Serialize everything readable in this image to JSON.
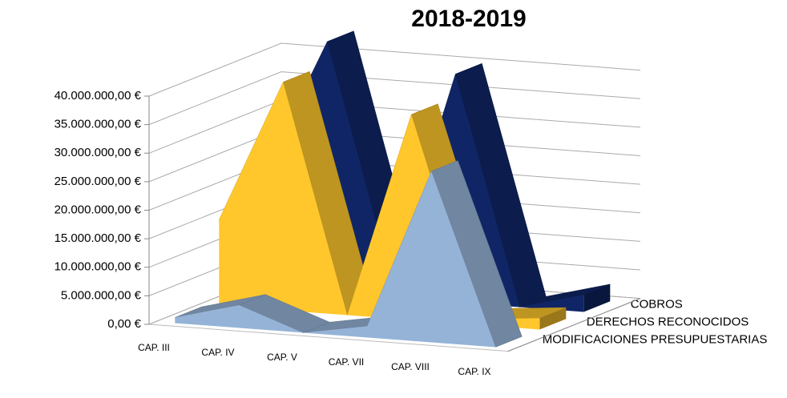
{
  "chart_data": {
    "type": "area3d",
    "title": "2018-2019",
    "categories": [
      "CAP. III",
      "CAP. IV",
      "CAP. V",
      "CAP. VII",
      "CAP. VIII",
      "CAP. IX"
    ],
    "series": [
      {
        "name": "MODIFICACIONES PRESUPUESTARIAS",
        "color": "#95b3d7",
        "values": [
          1000000,
          4000000,
          0,
          2000000,
          30000000,
          0
        ]
      },
      {
        "name": "DERECHOS RECONOCIDOS",
        "color": "#ffc72c",
        "values": [
          15000000,
          40000000,
          0,
          36000000,
          1000000,
          2000000
        ]
      },
      {
        "name": "COBROS",
        "color": "#0f2566",
        "values": [
          20000000,
          44000000,
          3000000,
          40000000,
          0,
          3000000
        ]
      }
    ],
    "ylim": [
      0,
      40000000
    ],
    "yticks": [
      {
        "value": 0,
        "label": "0,00 €"
      },
      {
        "value": 5000000,
        "label": "5.000.000,00 €"
      },
      {
        "value": 10000000,
        "label": "10.000.000,00 €"
      },
      {
        "value": 15000000,
        "label": "15.000.000,00 €"
      },
      {
        "value": 20000000,
        "label": "20.000.000,00 €"
      },
      {
        "value": 25000000,
        "label": "25.000.000,00 €"
      },
      {
        "value": 30000000,
        "label": "30.000.000,00 €"
      },
      {
        "value": 35000000,
        "label": "35.000.000,00 €"
      },
      {
        "value": 40000000,
        "label": "40.000.000,00 €"
      }
    ],
    "grid": true
  }
}
